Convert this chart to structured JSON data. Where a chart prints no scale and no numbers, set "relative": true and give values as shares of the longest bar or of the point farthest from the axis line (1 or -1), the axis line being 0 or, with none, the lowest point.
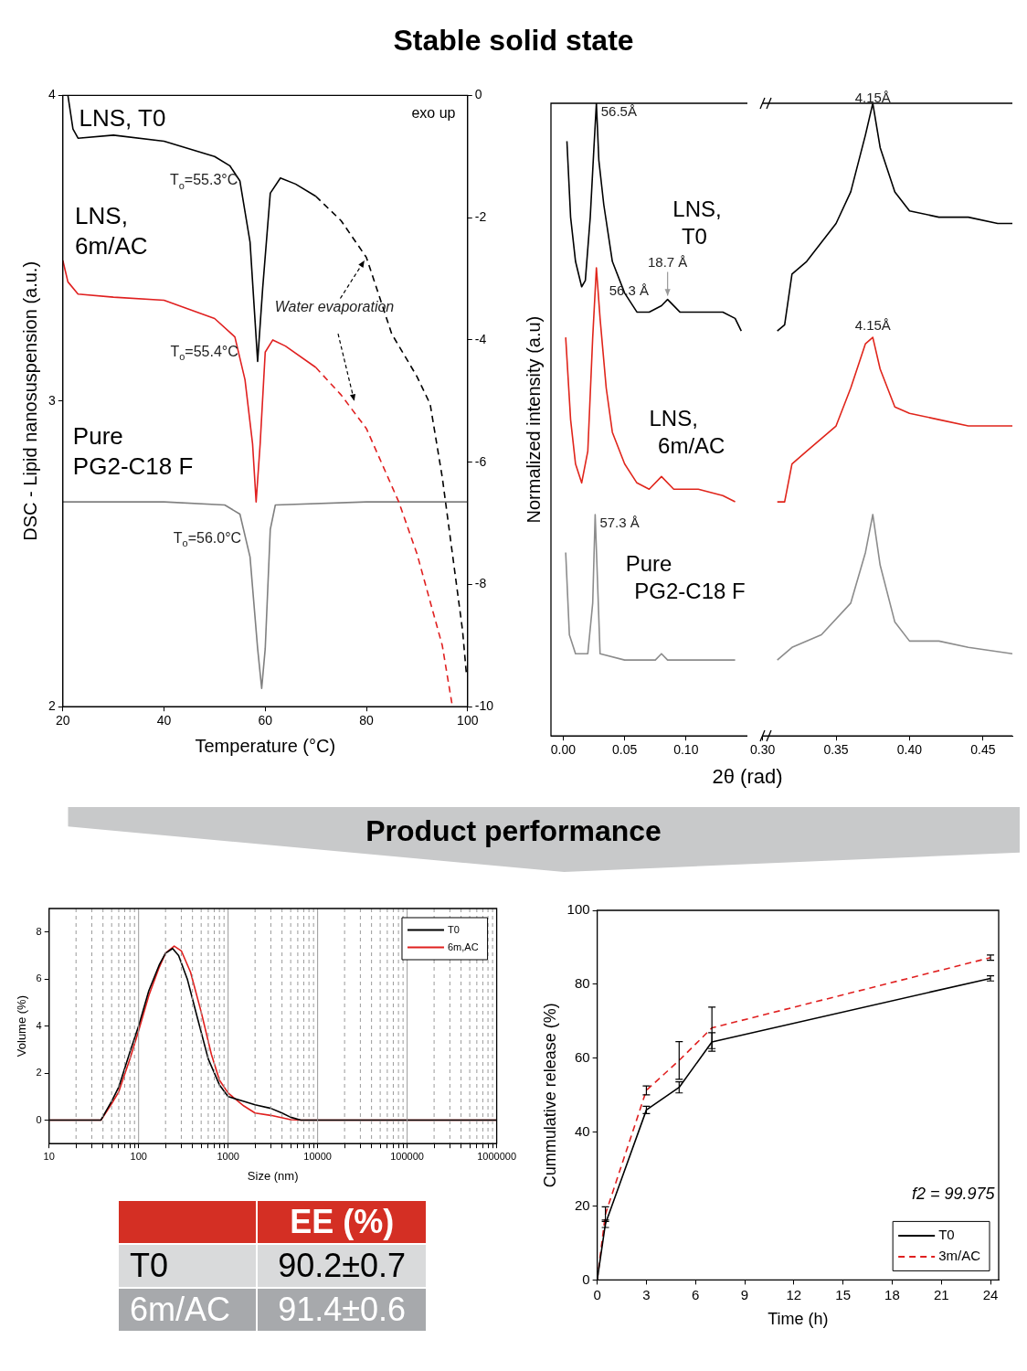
{
  "chart_data": [
    {
      "type": "line",
      "title": "Stable solid state",
      "xlabel": "Temperature (°C)",
      "ylabel": "DSC - Lipid nanosuspension (a.u.)",
      "xlim": [
        20,
        100
      ],
      "xticks": [
        20,
        40,
        60,
        80,
        100
      ],
      "ylim": [
        2,
        4
      ],
      "yticks": [
        2,
        3,
        4
      ],
      "y2lim": [
        -10,
        0
      ],
      "y2ticks": [
        0,
        -2,
        -4,
        -6,
        -8,
        -10
      ],
      "legend": false,
      "grid": false,
      "marker": "none",
      "annotations": [
        {
          "text": "T$_{o}$=55.3°C",
          "x": 55.3,
          "y": 3.72
        },
        {
          "text": "T$_{o}$=55.4°C",
          "x": 55.4,
          "y": 3.16
        },
        {
          "text": "T$_{o}$=56.0°C",
          "x": 56.0,
          "y": 2.55
        },
        {
          "text": "Water evaporation",
          "x": 80,
          "y": 3.47
        },
        "exo up"
      ],
      "series": [
        {
          "name": "LNS, T0",
          "color": "#000000",
          "line_style": "solid",
          "x": [
            21,
            22,
            23,
            30,
            40,
            50,
            53,
            55,
            57,
            58.5,
            59.5,
            61,
            63,
            66,
            70
          ],
          "values": [
            4.0,
            3.89,
            3.86,
            3.87,
            3.85,
            3.8,
            3.77,
            3.72,
            3.52,
            3.13,
            3.37,
            3.68,
            3.73,
            3.71,
            3.67
          ]
        },
        {
          "color": "#000000",
          "line_style": "dashed",
          "x": [
            70,
            75,
            80,
            85,
            90,
            92.6,
            95,
            97,
            99,
            99.8
          ],
          "values": [
            3.67,
            3.59,
            3.47,
            3.22,
            3.08,
            2.99,
            2.75,
            2.5,
            2.25,
            2.1
          ]
        },
        {
          "name": "LNS, 6m/AC",
          "color": "#e02020",
          "line_style": "solid",
          "x": [
            20,
            21,
            23,
            30,
            40,
            50,
            54,
            56,
            57.5,
            58.2,
            59,
            60,
            61.5,
            64,
            70
          ],
          "values": [
            3.46,
            3.39,
            3.35,
            3.34,
            3.33,
            3.27,
            3.21,
            3.07,
            2.86,
            2.67,
            2.86,
            3.16,
            3.2,
            3.18,
            3.11
          ]
        },
        {
          "color": "#e02020",
          "line_style": "dashed",
          "x": [
            70,
            75,
            80,
            86.4,
            90,
            95,
            97
          ],
          "values": [
            3.11,
            3.02,
            2.91,
            2.67,
            2.5,
            2.2,
            2.0
          ]
        },
        {
          "name": "Pure PG2-C18 F",
          "color": "#808080",
          "line_style": "solid",
          "x": [
            20,
            40,
            52,
            55,
            57,
            58.5,
            59.3,
            60,
            61,
            62,
            80,
            100
          ],
          "values": [
            2.67,
            2.67,
            2.66,
            2.63,
            2.49,
            2.19,
            2.06,
            2.19,
            2.58,
            2.66,
            2.67,
            2.67
          ]
        }
      ]
    },
    {
      "type": "line",
      "relative": true,
      "ylabel": "Normalized intensity (a.u)",
      "xlabel": "2θ (rad)",
      "xlim": [
        -0.01,
        0.15
      ],
      "xticks": [
        {
          "value": 0,
          "label": "0.00"
        },
        {
          "value": 0.05,
          "label": "0.05"
        },
        {
          "value": 0.1,
          "label": "0.10"
        }
      ],
      "legend": false,
      "marker": "none",
      "annotations": [
        {
          "text": "56.5Å",
          "x": 0.027,
          "y": 1.0
        },
        {
          "text": "18.7 Å",
          "x": 0.085,
          "y": 0.69
        },
        {
          "text": "56.3 Å",
          "x": 0.027,
          "y": 0.74
        },
        {
          "text": "57.3 Å",
          "x": 0.026,
          "y": 0.35
        }
      ],
      "series": [
        {
          "name": "LNS, T0",
          "color": "#000000",
          "x": [
            0.003,
            0.006,
            0.01,
            0.015,
            0.018,
            0.022,
            0.025,
            0.027,
            0.029,
            0.033,
            0.04,
            0.05,
            0.06,
            0.07,
            0.08,
            0.085,
            0.095,
            0.11,
            0.13,
            0.14,
            0.145
          ],
          "values": [
            0.94,
            0.82,
            0.75,
            0.71,
            0.72,
            0.82,
            0.93,
            1.0,
            0.91,
            0.84,
            0.75,
            0.7,
            0.67,
            0.67,
            0.68,
            0.69,
            0.67,
            0.67,
            0.67,
            0.66,
            0.64
          ]
        },
        {
          "name": "LNS, 6m/AC",
          "color": "#e0251b",
          "x": [
            0.002,
            0.006,
            0.01,
            0.015,
            0.02,
            0.024,
            0.027,
            0.03,
            0.035,
            0.04,
            0.05,
            0.06,
            0.07,
            0.08,
            0.09,
            0.11,
            0.13,
            0.14
          ],
          "values": [
            0.63,
            0.5,
            0.43,
            0.4,
            0.45,
            0.63,
            0.74,
            0.66,
            0.55,
            0.48,
            0.43,
            0.4,
            0.39,
            0.41,
            0.39,
            0.39,
            0.38,
            0.37
          ]
        },
        {
          "name": "Pure PG2-C18 F",
          "color": "#8c8c8c",
          "x": [
            0.002,
            0.005,
            0.01,
            0.02,
            0.024,
            0.026,
            0.028,
            0.03,
            0.05,
            0.075,
            0.08,
            0.085,
            0.14
          ],
          "values": [
            0.29,
            0.16,
            0.13,
            0.13,
            0.21,
            0.35,
            0.24,
            0.13,
            0.12,
            0.12,
            0.13,
            0.12,
            0.12
          ]
        }
      ]
    },
    {
      "type": "line",
      "relative": true,
      "xlim": [
        0.3,
        0.47
      ],
      "xticks": [
        {
          "value": 0.3,
          "label": "0.30"
        },
        {
          "value": 0.35,
          "label": "0.35"
        },
        {
          "value": 0.4,
          "label": "0.40"
        },
        {
          "value": 0.45,
          "label": "0.45"
        }
      ],
      "legend": false,
      "marker": "none",
      "annotations": [
        {
          "text": "4.15Å",
          "x": 0.375,
          "y": 0.99
        },
        {
          "text": "4.15Å",
          "x": 0.375,
          "y": 0.63
        }
      ],
      "series": [
        {
          "color": "#000000",
          "x": [
            0.31,
            0.315,
            0.32,
            0.33,
            0.34,
            0.35,
            0.36,
            0.37,
            0.375,
            0.38,
            0.39,
            0.4,
            0.42,
            0.44,
            0.46,
            0.47
          ],
          "values": [
            0.64,
            0.65,
            0.73,
            0.75,
            0.78,
            0.81,
            0.86,
            0.95,
            1.0,
            0.93,
            0.86,
            0.83,
            0.82,
            0.82,
            0.81,
            0.81
          ]
        },
        {
          "color": "#e0251b",
          "x": [
            0.31,
            0.315,
            0.32,
            0.33,
            0.34,
            0.35,
            0.36,
            0.37,
            0.375,
            0.38,
            0.39,
            0.4,
            0.42,
            0.44,
            0.46,
            0.47
          ],
          "values": [
            0.37,
            0.37,
            0.43,
            0.45,
            0.47,
            0.49,
            0.55,
            0.62,
            0.63,
            0.58,
            0.52,
            0.51,
            0.5,
            0.49,
            0.49,
            0.49
          ]
        },
        {
          "color": "#8c8c8c",
          "x": [
            0.31,
            0.32,
            0.34,
            0.36,
            0.37,
            0.375,
            0.38,
            0.39,
            0.4,
            0.42,
            0.44,
            0.47
          ],
          "values": [
            0.12,
            0.14,
            0.16,
            0.21,
            0.29,
            0.35,
            0.27,
            0.18,
            0.15,
            0.15,
            0.14,
            0.13
          ]
        }
      ]
    },
    {
      "type": "line",
      "title": "Product performance",
      "xlabel": "Size (nm)",
      "ylabel": "Volume (%)",
      "log": "x",
      "xlim": [
        10,
        1000000
      ],
      "xticks": [
        10,
        {
          "value": 20,
          "label": null
        },
        {
          "value": 30,
          "label": null
        },
        {
          "value": 40,
          "label": null
        },
        {
          "value": 50,
          "label": null
        },
        {
          "value": 60,
          "label": null
        },
        {
          "value": 70,
          "label": null
        },
        {
          "value": 80,
          "label": null
        },
        {
          "value": 90,
          "label": null
        },
        100,
        {
          "value": 200,
          "label": null
        },
        {
          "value": 300,
          "label": null
        },
        {
          "value": 400,
          "label": null
        },
        {
          "value": 500,
          "label": null
        },
        {
          "value": 600,
          "label": null
        },
        {
          "value": 700,
          "label": null
        },
        {
          "value": 800,
          "label": null
        },
        {
          "value": 900,
          "label": null
        },
        1000,
        {
          "value": 2000,
          "label": null
        },
        {
          "value": 3000,
          "label": null
        },
        {
          "value": 4000,
          "label": null
        },
        {
          "value": 5000,
          "label": null
        },
        {
          "value": 6000,
          "label": null
        },
        {
          "value": 7000,
          "label": null
        },
        {
          "value": 8000,
          "label": null
        },
        {
          "value": 9000,
          "label": null
        },
        10000,
        {
          "value": 20000,
          "label": null
        },
        {
          "value": 30000,
          "label": null
        },
        {
          "value": 40000,
          "label": null
        },
        {
          "value": 50000,
          "label": null
        },
        {
          "value": 60000,
          "label": null
        },
        {
          "value": 70000,
          "label": null
        },
        {
          "value": 80000,
          "label": null
        },
        {
          "value": 90000,
          "label": null
        },
        100000,
        {
          "value": 200000,
          "label": null
        },
        {
          "value": 300000,
          "label": null
        },
        {
          "value": 400000,
          "label": null
        },
        {
          "value": 500000,
          "label": null
        },
        {
          "value": 600000,
          "label": null
        },
        {
          "value": 700000,
          "label": null
        },
        {
          "value": 800000,
          "label": null
        },
        {
          "value": 900000,
          "label": null
        },
        1000000
      ],
      "ylim": [
        -1,
        9
      ],
      "yticks": [
        0,
        2,
        4,
        6,
        8
      ],
      "grid": "x",
      "legend": "top right",
      "marker": "none",
      "series": [
        {
          "name": "T0",
          "color": "#000000",
          "x": [
            10,
            38,
            50,
            60,
            80,
            100,
            130,
            170,
            200,
            240,
            280,
            350,
            450,
            600,
            800,
            1000,
            1500,
            2000,
            3000,
            4000,
            5000,
            6500,
            1000000
          ],
          "values": [
            0,
            0,
            0.8,
            1.4,
            2.9,
            4.0,
            5.5,
            6.6,
            7.1,
            7.3,
            7.0,
            6.0,
            4.4,
            2.6,
            1.5,
            1.0,
            0.8,
            0.65,
            0.5,
            0.3,
            0.12,
            0,
            0
          ]
        },
        {
          "name": "6m,AC",
          "color": "#e0201e",
          "x": [
            10,
            38,
            50,
            60,
            80,
            100,
            130,
            170,
            200,
            250,
            300,
            380,
            500,
            650,
            800,
            1000,
            1500,
            2000,
            3000,
            5000,
            6500,
            1000000
          ],
          "values": [
            0,
            0,
            0.7,
            1.2,
            2.6,
            3.8,
            5.3,
            6.5,
            7.1,
            7.4,
            7.2,
            6.3,
            4.6,
            2.8,
            1.7,
            1.15,
            0.6,
            0.3,
            0.2,
            0.02,
            0,
            0
          ]
        }
      ]
    },
    {
      "type": "line",
      "xlabel": "Time (h)",
      "ylabel": "Cummulative release (%)",
      "xlim": [
        0,
        24.5
      ],
      "xticks": [
        0,
        3,
        6,
        9,
        12,
        15,
        18,
        21,
        24
      ],
      "ylim": [
        0,
        100
      ],
      "yticks": [
        0,
        20,
        40,
        60,
        80,
        100
      ],
      "legend": "bottom right",
      "annotations": [
        "f2 = 99.975"
      ],
      "series": [
        {
          "name": "T0",
          "color": "#000000",
          "line_style": "solid",
          "x": [
            0,
            0.5,
            3,
            5,
            7,
            24
          ],
          "values": [
            0,
            15.2,
            46.0,
            52.1,
            64.4,
            81.6
          ],
          "errors": [
            null,
            1,
            1,
            1.5,
            2.5,
            0.7
          ]
        },
        {
          "name": "3m/AC",
          "color": "#e02020",
          "line_style": "dashed",
          "x": [
            0,
            0.5,
            3,
            5,
            7,
            24
          ],
          "values": [
            0,
            17.8,
            51.3,
            59.4,
            68.2,
            87.2
          ],
          "errors": [
            null,
            2,
            1.2,
            5.1,
            5.6,
            0.7
          ]
        }
      ]
    },
    {
      "type": "other",
      "title": "EE (%)",
      "annotations": [
        "T0",
        "90.2±0.7",
        "6m/AC",
        "91.4±0.6"
      ]
    }
  ]
}
